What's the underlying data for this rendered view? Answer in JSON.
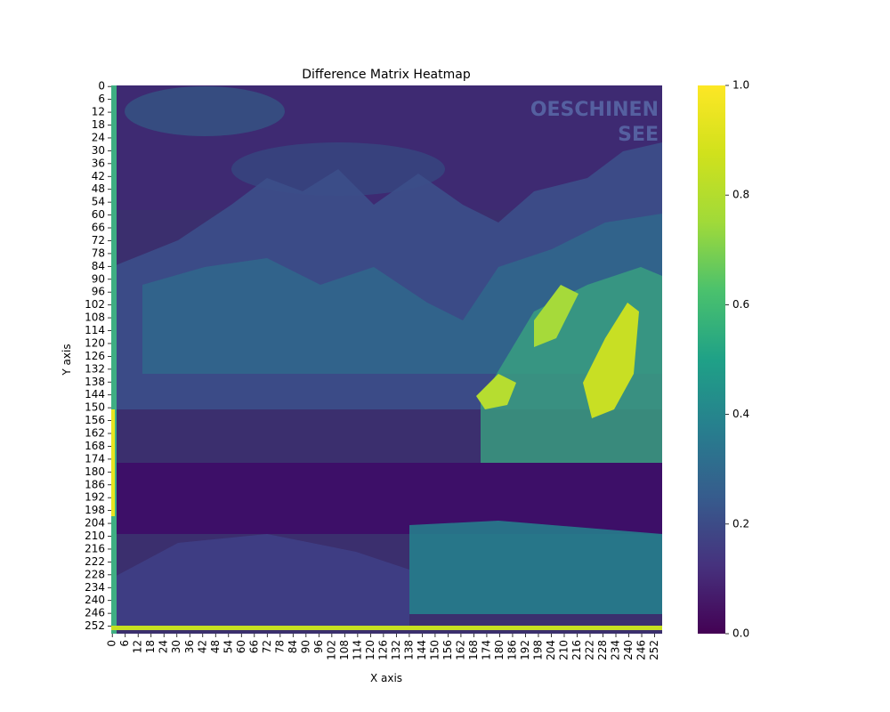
{
  "chart_data": {
    "type": "heatmap",
    "title": "Difference Matrix Heatmap",
    "xlabel": "X axis",
    "ylabel": "Y axis",
    "n_rows": 256,
    "n_cols": 256,
    "x_ticks": [
      "0",
      "6",
      "12",
      "18",
      "24",
      "30",
      "36",
      "42",
      "48",
      "54",
      "60",
      "66",
      "72",
      "78",
      "84",
      "90",
      "96",
      "102",
      "108",
      "114",
      "120",
      "126",
      "132",
      "138",
      "144",
      "150",
      "156",
      "162",
      "168",
      "174",
      "180",
      "186",
      "192",
      "198",
      "204",
      "210",
      "216",
      "222",
      "228",
      "234",
      "240",
      "246",
      "252"
    ],
    "y_ticks": [
      "0",
      "6",
      "12",
      "18",
      "24",
      "30",
      "36",
      "42",
      "48",
      "54",
      "60",
      "66",
      "72",
      "78",
      "84",
      "90",
      "96",
      "102",
      "108",
      "114",
      "120",
      "126",
      "132",
      "138",
      "144",
      "150",
      "156",
      "162",
      "168",
      "174",
      "180",
      "186",
      "192",
      "198",
      "204",
      "210",
      "216",
      "222",
      "228",
      "234",
      "240",
      "246",
      "252"
    ],
    "colorbar": {
      "ticks": [
        "0.0",
        "0.2",
        "0.4",
        "0.6",
        "0.8",
        "1.0"
      ],
      "range": [
        0,
        1
      ],
      "colormap": "viridis"
    },
    "watermark_text": [
      "OESCHINEN",
      "SEE"
    ],
    "colors": {
      "low": "#440154",
      "mid": "#21918c",
      "high": "#fde725"
    }
  }
}
